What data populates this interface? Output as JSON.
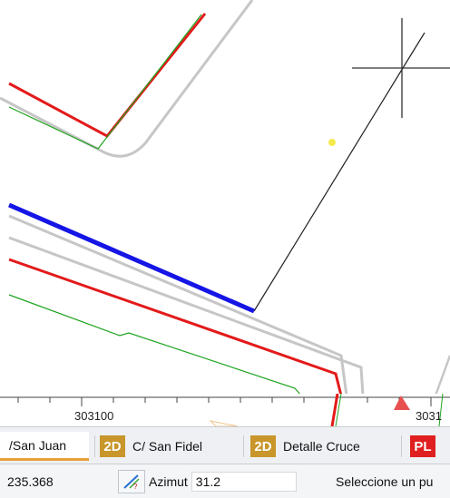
{
  "ruler": {
    "tick_label_1": "303100",
    "tick_label_2": "3031"
  },
  "tabs": [
    {
      "label": "/San Juan",
      "badge": "",
      "active": true
    },
    {
      "label": "C/ San Fidel",
      "badge": "2D",
      "active": false
    },
    {
      "label": "Detalle Cruce",
      "badge": "2D",
      "active": false
    },
    {
      "label": "",
      "badge": "PL",
      "active": false
    }
  ],
  "status": {
    "coordinate": "235.368",
    "azimut_label": "Azimut",
    "azimut_value": "31.2",
    "prompt": "Seleccione un pu"
  },
  "icons": {
    "crosshair": "crosshair-cursor-icon",
    "azimut": "azimut-icon",
    "marker": "triangle-marker-icon"
  },
  "colors": {
    "road_edge": "#c6c6c6",
    "red_line": "#e31a1a",
    "green_line": "#1fa31f",
    "blue_line": "#1515e6",
    "accent_tab": "#e8a13a",
    "badge_2d": "#c8962a",
    "badge_pl": "#e02020"
  }
}
